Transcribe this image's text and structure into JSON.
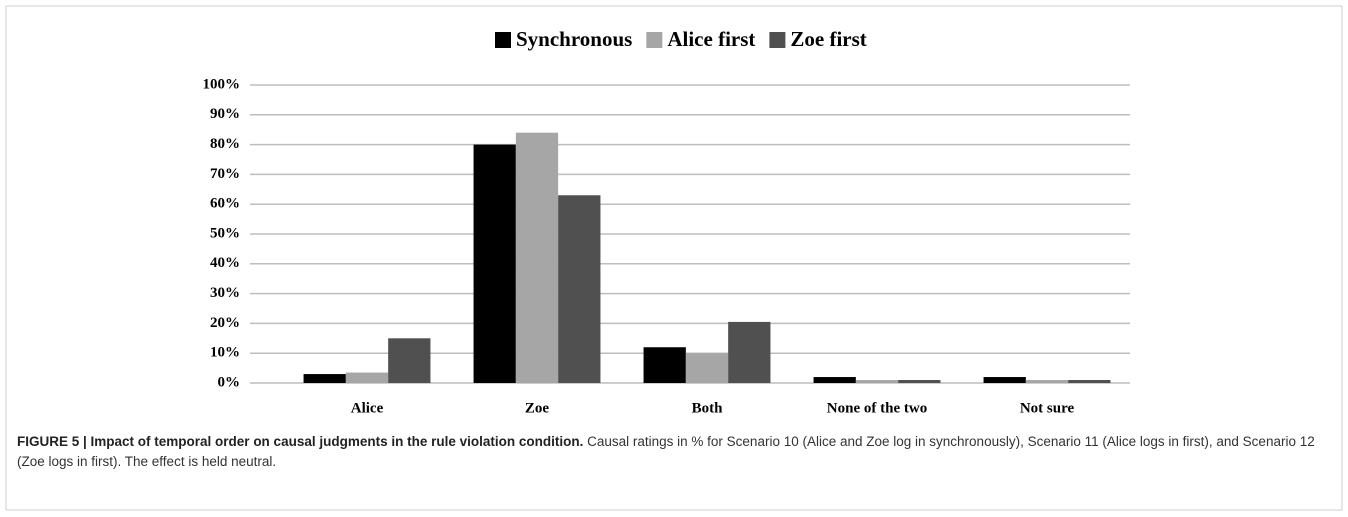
{
  "chart_data": {
    "type": "bar",
    "categories": [
      "Alice",
      "Zoe",
      "Both",
      "None of the two",
      "Not sure"
    ],
    "series": [
      {
        "name": "Synchronous",
        "color": "#000000",
        "values": [
          3,
          80,
          12,
          2,
          2
        ]
      },
      {
        "name": "Alice first",
        "color": "#a6a6a6",
        "values": [
          3.5,
          84,
          10,
          1,
          1
        ]
      },
      {
        "name": "Zoe first",
        "color": "#505050",
        "values": [
          15,
          63,
          20.5,
          1,
          1
        ]
      }
    ],
    "ylim": [
      0,
      100
    ],
    "yticks": [
      {
        "value": 0,
        "label": "0%"
      },
      {
        "value": 10,
        "label": "10%"
      },
      {
        "value": 20,
        "label": "20%"
      },
      {
        "value": 30,
        "label": "30%"
      },
      {
        "value": 40,
        "label": "40%"
      },
      {
        "value": 50,
        "label": "50%"
      },
      {
        "value": 60,
        "label": "60%"
      },
      {
        "value": 70,
        "label": "70%"
      },
      {
        "value": 80,
        "label": "80%"
      },
      {
        "value": 90,
        "label": "90%"
      },
      {
        "value": 100,
        "label": "100%"
      }
    ],
    "grid": true,
    "legend": "top"
  },
  "caption": {
    "label": "FIGURE 5 | Impact of temporal order on causal judgments in the rule violation condition.",
    "text": "Causal ratings in % for Scenario 10 (Alice and Zoe log in synchronously), Scenario 11 (Alice logs in first), and Scenario 12 (Zoe logs in first). The effect is held neutral."
  }
}
